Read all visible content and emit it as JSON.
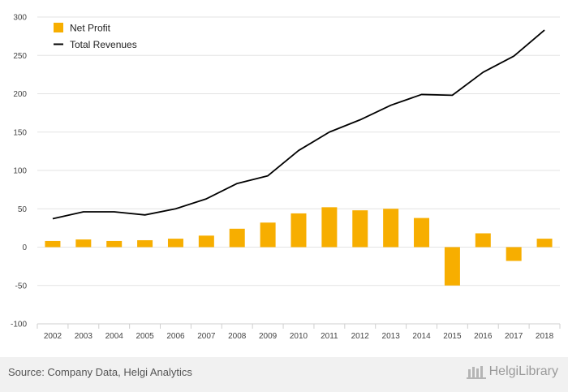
{
  "chart_data": {
    "type": "bar+line",
    "categories": [
      "2002",
      "2003",
      "2004",
      "2005",
      "2006",
      "2007",
      "2008",
      "2009",
      "2010",
      "2011",
      "2012",
      "2013",
      "2014",
      "2015",
      "2016",
      "2017",
      "2018"
    ],
    "series": [
      {
        "name": "Net Profit",
        "type": "bar",
        "color": "#f7ae00",
        "values": [
          8,
          10,
          8,
          9,
          11,
          15,
          24,
          32,
          44,
          52,
          48,
          50,
          38,
          -50,
          18,
          -18,
          11
        ]
      },
      {
        "name": "Total Revenues",
        "type": "line",
        "color": "#000000",
        "values": [
          37,
          46,
          46,
          42,
          50,
          63,
          83,
          93,
          126,
          150,
          166,
          185,
          199,
          198,
          228,
          249,
          283
        ]
      }
    ],
    "ylim": [
      -100,
      300
    ],
    "yticks": [
      -100,
      -50,
      0,
      50,
      100,
      150,
      200,
      250,
      300
    ],
    "grid": true,
    "legend_position": "top-left"
  },
  "footer": {
    "source": "Source: Company Data, Helgi Analytics",
    "brand": "HelgiLibrary"
  }
}
